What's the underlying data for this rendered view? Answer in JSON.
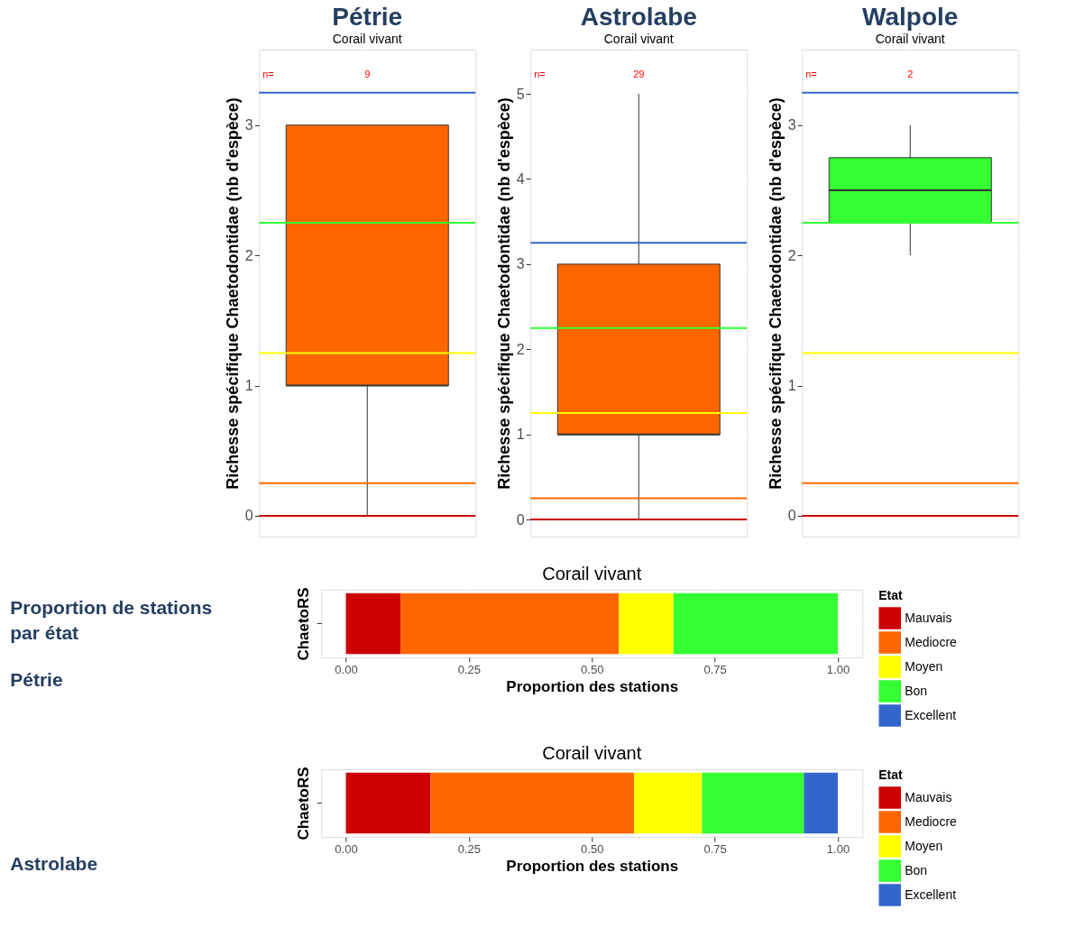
{
  "chart_data": [
    {
      "type": "box",
      "title": "Pétrie",
      "subtitle": "Corail vivant",
      "ylabel": "Richesse spécifique Chaetodontidae (nb d'espèce)",
      "categories": [
        null
      ],
      "ylim": [
        -0.16,
        3.58
      ],
      "yticks": [
        0,
        1,
        2,
        3
      ],
      "grid": true,
      "series": [
        {
          "color": "#ff6600",
          "boxes": [
            {
              "low": 0,
              "q1": 1,
              "median": 1,
              "q3": 3,
              "high": 3
            }
          ]
        }
      ],
      "ref_lines": [
        {
          "axis": "y",
          "value": 0,
          "color": "#cc0000"
        },
        {
          "axis": "y",
          "value": 0.25,
          "color": "#ff6600"
        },
        {
          "axis": "y",
          "value": 1.25,
          "color": "#ffff00"
        },
        {
          "axis": "y",
          "value": 2.25,
          "color": "#33ff33"
        },
        {
          "axis": "y",
          "value": 3.25,
          "color": "#3366cc"
        }
      ],
      "annotations": [
        "n=",
        "9"
      ]
    },
    {
      "type": "box",
      "title": "Astrolabe",
      "subtitle": "Corail vivant",
      "ylabel": "Richesse spécifique Chaetodontidae (nb d'espèce)",
      "categories": [
        null
      ],
      "ylim": [
        -0.2,
        5.52
      ],
      "yticks": [
        0,
        1,
        2,
        3,
        4,
        5
      ],
      "grid": true,
      "series": [
        {
          "color": "#ff6600",
          "boxes": [
            {
              "low": 0,
              "q1": 1,
              "median": 1,
              "q3": 3,
              "high": 5
            }
          ]
        }
      ],
      "ref_lines": [
        {
          "axis": "y",
          "value": 0,
          "color": "#cc0000"
        },
        {
          "axis": "y",
          "value": 0.25,
          "color": "#ff6600"
        },
        {
          "axis": "y",
          "value": 1.25,
          "color": "#ffff00"
        },
        {
          "axis": "y",
          "value": 2.25,
          "color": "#33ff33"
        },
        {
          "axis": "y",
          "value": 3.25,
          "color": "#3366cc"
        }
      ],
      "annotations": [
        "n=",
        "29"
      ]
    },
    {
      "type": "box",
      "title": "Walpole",
      "subtitle": "Corail vivant",
      "ylabel": "Richesse spécifique Chaetodontidae (nb d'espèce)",
      "categories": [
        null
      ],
      "ylim": [
        -0.16,
        3.58
      ],
      "yticks": [
        0,
        1,
        2,
        3
      ],
      "grid": true,
      "series": [
        {
          "color": "#33ff33",
          "boxes": [
            {
              "low": 2,
              "q1": 2.25,
              "median": 2.5,
              "q3": 2.75,
              "high": 3
            }
          ]
        }
      ],
      "ref_lines": [
        {
          "axis": "y",
          "value": 0,
          "color": "#cc0000"
        },
        {
          "axis": "y",
          "value": 0.25,
          "color": "#ff6600"
        },
        {
          "axis": "y",
          "value": 1.25,
          "color": "#ffff00"
        },
        {
          "axis": "y",
          "value": 2.25,
          "color": "#33ff33"
        },
        {
          "axis": "y",
          "value": 3.25,
          "color": "#3366cc"
        }
      ],
      "annotations": [
        "n=",
        "2"
      ]
    },
    {
      "type": "bar",
      "orientation": "horizontal",
      "stacked": true,
      "title": "Corail vivant",
      "xlabel": "Proportion des stations",
      "ylabel": "ChaetoRS",
      "legend_title": "Etat",
      "legend": "right",
      "grid": true,
      "categories": [
        null
      ],
      "xlim": [
        -0.05,
        1.05
      ],
      "xticks": [
        {
          "value": 0,
          "label": "0.00"
        },
        {
          "value": 0.25,
          "label": "0.25"
        },
        {
          "value": 0.5,
          "label": "0.50"
        },
        {
          "value": 0.75,
          "label": "0.75"
        },
        {
          "value": 1,
          "label": "1.00"
        }
      ],
      "series": [
        {
          "name": "Mauvais",
          "color": "#cc0000",
          "values": [
            0.111
          ]
        },
        {
          "name": "Mediocre",
          "color": "#ff6600",
          "values": [
            0.444
          ]
        },
        {
          "name": "Moyen",
          "color": "#ffff00",
          "values": [
            0.111
          ]
        },
        {
          "name": "Bon",
          "color": "#33ff33",
          "values": [
            0.334
          ]
        },
        {
          "name": "Excellent",
          "color": "#3366cc",
          "values": [
            0
          ]
        }
      ],
      "annotations": [
        "Proportion de stations par état",
        "Pétrie"
      ]
    },
    {
      "type": "bar",
      "orientation": "horizontal",
      "stacked": true,
      "title": "Corail vivant",
      "xlabel": "Proportion des stations",
      "ylabel": "ChaetoRS",
      "legend_title": "Etat",
      "legend": "right",
      "grid": true,
      "categories": [
        null
      ],
      "xlim": [
        -0.05,
        1.05
      ],
      "xticks": [
        {
          "value": 0,
          "label": "0.00"
        },
        {
          "value": 0.25,
          "label": "0.25"
        },
        {
          "value": 0.5,
          "label": "0.50"
        },
        {
          "value": 0.75,
          "label": "0.75"
        },
        {
          "value": 1,
          "label": "1.00"
        }
      ],
      "series": [
        {
          "name": "Mauvais",
          "color": "#cc0000",
          "values": [
            0.172
          ]
        },
        {
          "name": "Mediocre",
          "color": "#ff6600",
          "values": [
            0.414
          ]
        },
        {
          "name": "Moyen",
          "color": "#ffff00",
          "values": [
            0.138
          ]
        },
        {
          "name": "Bon",
          "color": "#33ff33",
          "values": [
            0.207
          ]
        },
        {
          "name": "Excellent",
          "color": "#3366cc",
          "values": [
            0.069
          ]
        }
      ],
      "annotations": [
        "Astrolabe"
      ]
    }
  ]
}
